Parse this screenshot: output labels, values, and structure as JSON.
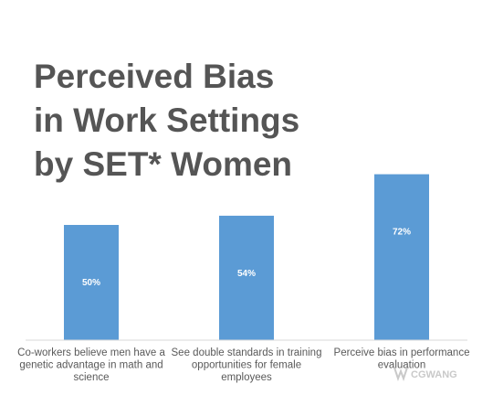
{
  "chart_data": {
    "type": "bar",
    "title": "Perceived Bias in Work Settings by SET* Women",
    "title_lines": [
      "Perceived Bias",
      "in Work Settings",
      "by SET* Women"
    ],
    "categories": [
      "Co-workers believe men have a genetic advantage in math and science",
      "See double standards in training opportunities for female employees",
      "Perceive bias in performance evaluation"
    ],
    "category_lines": [
      [
        "Co-workers believe men have a",
        "genetic advantage in math and",
        "science"
      ],
      [
        "See double standards in training",
        "opportunities for female",
        "employees"
      ],
      [
        "Perceive bias in performance",
        "evaluation"
      ]
    ],
    "values": [
      50,
      54,
      72
    ],
    "value_labels": [
      "50%",
      "54%",
      "72%"
    ],
    "ylim": [
      0,
      100
    ],
    "grid": false,
    "legend": "none",
    "bar_color": "#5b9bd5",
    "title_color": "#555555",
    "axis_color": "#d9d9d9"
  },
  "watermark": {
    "text": "CGWANG"
  }
}
